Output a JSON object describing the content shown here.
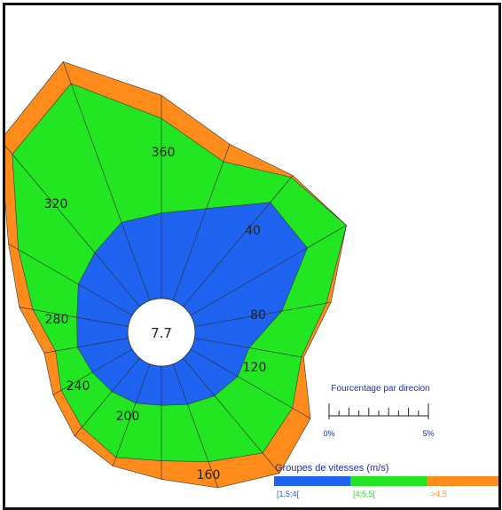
{
  "chart_data": {
    "type": "wind-rose",
    "calm_center_value": "7.7",
    "direction_labels": [
      "360",
      "40",
      "80",
      "120",
      "160",
      "200",
      "240",
      "280",
      "320"
    ],
    "scale": {
      "title": "Fourcentage par direcion",
      "min_label": "0%",
      "max_label": "5%",
      "min_percent": 0,
      "max_percent": 5
    },
    "legend": {
      "title": "Groupes de vitesses (m/s)",
      "classes": [
        {
          "label": "[1,5;4[",
          "color": "#1e64f0"
        },
        {
          "label": "[4;5,5[",
          "color": "#22e622"
        },
        {
          "label": ">4,5",
          "color": "#ff8c1a"
        }
      ]
    },
    "sector_angles_deg": [
      0,
      20,
      40,
      60,
      80,
      100,
      120,
      140,
      160,
      180,
      200,
      220,
      240,
      260,
      280,
      300,
      320,
      340
    ],
    "series": [
      {
        "name": "[1,5;4[",
        "cumulative_percent": [
          1.85,
          2.12,
          2.94,
          2.92,
          1.92,
          1.2,
          1.18,
          1.06,
          0.93,
          0.85,
          0.9,
          0.94,
          1.0,
          1.12,
          1.13,
          1.35,
          1.52,
          1.8
        ]
      },
      {
        "name": "[4;5,5[",
        "cumulative_percent": [
          3.9,
          3.2,
          3.65,
          3.9,
          2.9,
          2.35,
          2.55,
          2.68,
          2.25,
          2.05,
          2.15,
          1.95,
          1.78,
          1.6,
          2.1,
          2.85,
          4.3,
          5.0
        ]
      },
      {
        "name": ">4,5",
        "cumulative_percent": [
          4.4,
          3.6,
          3.7,
          3.9,
          3.0,
          2.4,
          3.0,
          3.25,
          2.85,
          2.45,
          2.35,
          2.2,
          1.98,
          1.85,
          2.4,
          3.1,
          4.7,
          5.5
        ]
      }
    ]
  }
}
